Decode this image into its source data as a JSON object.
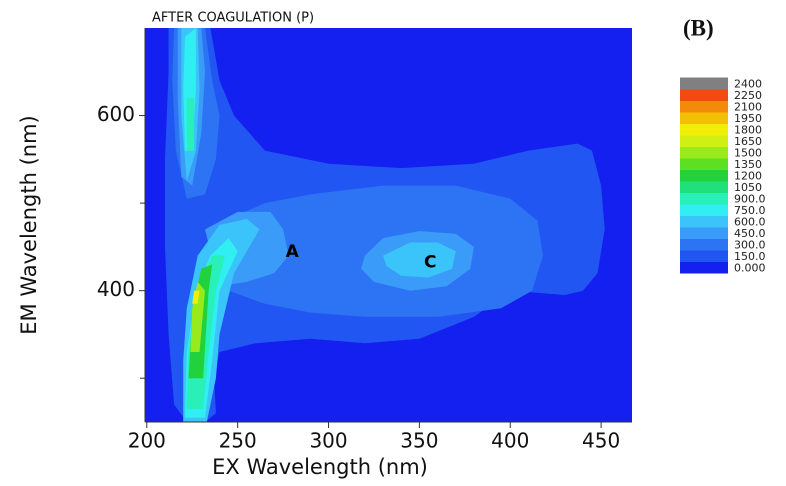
{
  "chart_data": {
    "type": "contour",
    "title": "AFTER COAGULATION (P)",
    "panel_label": "(B)",
    "xlabel": "EX Wavelength (nm)",
    "ylabel": "EM Wavelength (nm)",
    "xlim": [
      199,
      467
    ],
    "ylim": [
      250,
      700
    ],
    "xticks": [
      200,
      250,
      300,
      350,
      400,
      450
    ],
    "yticks": [
      400,
      600
    ],
    "yminorticks": [
      300,
      500
    ],
    "levels": [
      {
        "value": 0,
        "label": "0.000"
      },
      {
        "value": 150,
        "label": "150.0"
      },
      {
        "value": 300,
        "label": "300.0"
      },
      {
        "value": 450,
        "label": "450.0"
      },
      {
        "value": 600,
        "label": "600.0"
      },
      {
        "value": 750,
        "label": "750.0"
      },
      {
        "value": 900,
        "label": "900.0"
      },
      1050,
      1200,
      1350,
      1500,
      1650,
      1800,
      1950,
      2100,
      2250,
      2400
    ],
    "colors": [
      "#1420f0",
      "#2256f2",
      "#2c74f4",
      "#3a9cf8",
      "#3ac4fa",
      "#30eef2",
      "#28f0b8",
      "#20e07c",
      "#22d23c",
      "#5ee022",
      "#98ea1c",
      "#cff012",
      "#f2ee08",
      "#f4c006",
      "#f48a0a",
      "#f24a10",
      "#808080"
    ],
    "contours": [
      {
        "level": 150,
        "points": [
          [
            212,
            700
          ],
          [
            235,
            700
          ],
          [
            240,
            640
          ],
          [
            248,
            600
          ],
          [
            265,
            560
          ],
          [
            300,
            545
          ],
          [
            340,
            540
          ],
          [
            380,
            545
          ],
          [
            410,
            560
          ],
          [
            437,
            568
          ],
          [
            445,
            560
          ],
          [
            450,
            520
          ],
          [
            452,
            470
          ],
          [
            448,
            420
          ],
          [
            440,
            400
          ],
          [
            430,
            395
          ],
          [
            400,
            400
          ],
          [
            380,
            370
          ],
          [
            350,
            345
          ],
          [
            320,
            340
          ],
          [
            290,
            345
          ],
          [
            260,
            340
          ],
          [
            240,
            330
          ],
          [
            237,
            300
          ],
          [
            238,
            260
          ],
          [
            232,
            250
          ],
          [
            222,
            250
          ],
          [
            215,
            270
          ],
          [
            212,
            350
          ],
          [
            210,
            450
          ],
          [
            210,
            550
          ],
          [
            212,
            650
          ]
        ]
      },
      {
        "level": 300,
        "points": [
          [
            243,
            480
          ],
          [
            265,
            500
          ],
          [
            290,
            510
          ],
          [
            330,
            520
          ],
          [
            370,
            520
          ],
          [
            400,
            505
          ],
          [
            415,
            480
          ],
          [
            418,
            440
          ],
          [
            412,
            400
          ],
          [
            395,
            380
          ],
          [
            360,
            370
          ],
          [
            320,
            370
          ],
          [
            290,
            375
          ],
          [
            265,
            385
          ],
          [
            245,
            400
          ],
          [
            240,
            440
          ]
        ]
      },
      {
        "level": 300,
        "points": [
          [
            215,
            700
          ],
          [
            232,
            700
          ],
          [
            236,
            640
          ],
          [
            240,
            600
          ],
          [
            238,
            550
          ],
          [
            232,
            510
          ],
          [
            222,
            505
          ],
          [
            216,
            560
          ],
          [
            214,
            640
          ]
        ]
      },
      {
        "level": 450,
        "points": [
          [
            232,
            470
          ],
          [
            250,
            490
          ],
          [
            268,
            490
          ],
          [
            275,
            470
          ],
          [
            278,
            440
          ],
          [
            270,
            420
          ],
          [
            255,
            410
          ],
          [
            240,
            405
          ]
        ]
      },
      {
        "level": 450,
        "points": [
          [
            320,
            440
          ],
          [
            330,
            460
          ],
          [
            350,
            468
          ],
          [
            370,
            465
          ],
          [
            380,
            450
          ],
          [
            378,
            425
          ],
          [
            365,
            405
          ],
          [
            345,
            400
          ],
          [
            325,
            410
          ],
          [
            318,
            425
          ]
        ]
      },
      {
        "level": 450,
        "points": [
          [
            217,
            700
          ],
          [
            230,
            700
          ],
          [
            232,
            650
          ],
          [
            230,
            580
          ],
          [
            225,
            520
          ],
          [
            219,
            530
          ],
          [
            217,
            620
          ]
        ]
      },
      {
        "level": 600,
        "points": [
          [
            330,
            440
          ],
          [
            345,
            455
          ],
          [
            360,
            455
          ],
          [
            370,
            445
          ],
          [
            368,
            425
          ],
          [
            355,
            415
          ],
          [
            340,
            417
          ],
          [
            332,
            428
          ]
        ]
      },
      {
        "level": 600,
        "points": [
          [
            220,
            250
          ],
          [
            233,
            250
          ],
          [
            238,
            300
          ],
          [
            240,
            350
          ],
          [
            248,
            420
          ],
          [
            262,
            470
          ],
          [
            255,
            482
          ],
          [
            240,
            475
          ],
          [
            228,
            440
          ],
          [
            222,
            380
          ],
          [
            220,
            320
          ]
        ]
      },
      {
        "level": 600,
        "points": [
          [
            219,
            700
          ],
          [
            228,
            700
          ],
          [
            229,
            630
          ],
          [
            227,
            560
          ],
          [
            222,
            525
          ],
          [
            219,
            600
          ]
        ]
      },
      {
        "level": 750,
        "points": [
          [
            221,
            690
          ],
          [
            227,
            700
          ],
          [
            227,
            630
          ],
          [
            225,
            560
          ],
          [
            221,
            560
          ],
          [
            220,
            630
          ]
        ]
      },
      {
        "level": 750,
        "points": [
          [
            221,
            255
          ],
          [
            232,
            255
          ],
          [
            236,
            320
          ],
          [
            240,
            400
          ],
          [
            250,
            445
          ],
          [
            245,
            460
          ],
          [
            235,
            440
          ],
          [
            227,
            400
          ],
          [
            222,
            330
          ]
        ]
      },
      {
        "level": 900,
        "points": [
          [
            222,
            265
          ],
          [
            231,
            265
          ],
          [
            234,
            330
          ],
          [
            238,
            400
          ],
          [
            243,
            440
          ],
          [
            236,
            440
          ],
          [
            228,
            400
          ],
          [
            223,
            330
          ]
        ]
      },
      {
        "level": 900,
        "points": [
          [
            222,
            560
          ],
          [
            226,
            560
          ],
          [
            226,
            620
          ],
          [
            222,
            620
          ]
        ]
      },
      {
        "level": 1200,
        "points": [
          [
            223,
            300
          ],
          [
            231,
            300
          ],
          [
            234,
            400
          ],
          [
            236,
            430
          ],
          [
            230,
            425
          ],
          [
            225,
            380
          ]
        ]
      },
      {
        "level": 1500,
        "points": [
          [
            224,
            330
          ],
          [
            229,
            330
          ],
          [
            232,
            400
          ],
          [
            228,
            410
          ],
          [
            225,
            380
          ]
        ]
      },
      {
        "level": 1800,
        "points": [
          [
            225,
            385
          ],
          [
            228,
            385
          ],
          [
            229,
            400
          ],
          [
            226,
            400
          ]
        ]
      }
    ],
    "annotations": [
      {
        "text": "A",
        "x": 280,
        "y": 444
      },
      {
        "text": "C",
        "x": 356,
        "y": 432
      }
    ]
  }
}
